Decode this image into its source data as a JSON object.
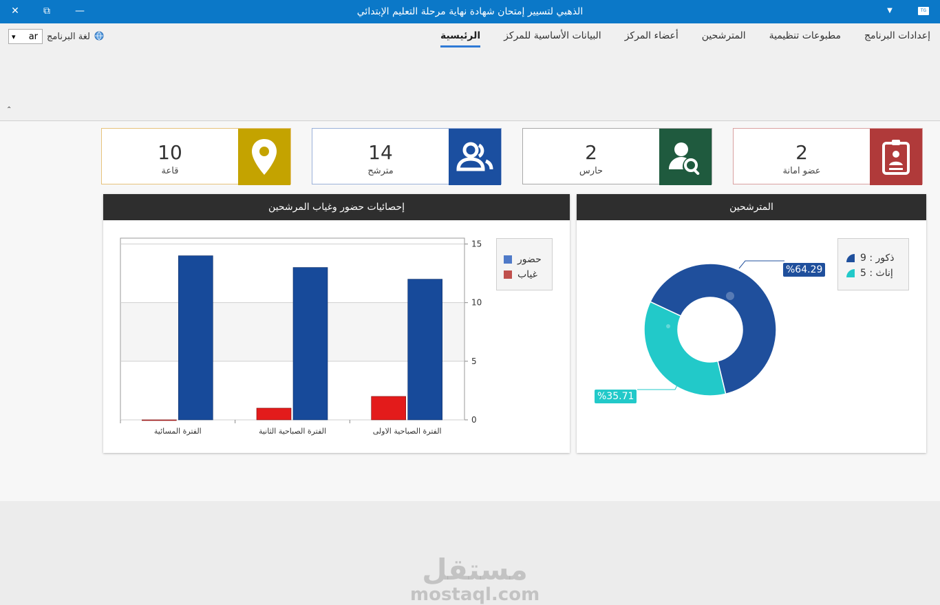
{
  "window": {
    "title": "الذهبي  لتسيير إمتحان شهادة نهاية مرحلة التعليم الإبتدائي",
    "close_glyph": "✕",
    "restore_glyph": "⧉",
    "minimize_glyph": "—",
    "dropdown_glyph": "▼",
    "app_icon_text": "TG"
  },
  "ribbon": {
    "tabs": [
      {
        "label": "الرئيسية",
        "active": true
      },
      {
        "label": "البيانات الأساسية للمركز"
      },
      {
        "label": "أعضاء المركز"
      },
      {
        "label": "المترشحين"
      },
      {
        "label": "مطبوعات تنظيمية"
      },
      {
        "label": "إعدادات البرنامج"
      }
    ],
    "language_label": "لغة البرنامج",
    "language_value": "ar",
    "language_arrow": "▾",
    "collapse_glyph": "⌃"
  },
  "cards": [
    {
      "value": "2",
      "label": "عضو امانة",
      "color": "#b03a3a",
      "icon": "id-badge-icon"
    },
    {
      "value": "2",
      "label": "حارس",
      "color": "#1f5a3e",
      "icon": "user-search-icon"
    },
    {
      "value": "14",
      "label": "مترشح",
      "color": "#1b4fa0",
      "icon": "users-icon"
    },
    {
      "value": "10",
      "label": "قاعة",
      "color": "#c4a300",
      "icon": "map-pin-icon"
    }
  ],
  "attendance_panel": {
    "title": "إحصائيات حضور وغياب المرشحين",
    "legend": [
      {
        "label": "حضور",
        "color": "#4f7ac8"
      },
      {
        "label": "غياب",
        "color": "#c0504d"
      }
    ]
  },
  "candidates_panel": {
    "title": "المترشحين",
    "legend": [
      {
        "label": "ذكور : 9",
        "color": "#1f4f9c"
      },
      {
        "label": "إناث : 5",
        "color": "#22c9c9"
      }
    ],
    "callouts": {
      "male": "%64.29",
      "female": "%35.71"
    }
  },
  "watermark": {
    "line1": "مستقل",
    "line2": "mostaql.com"
  },
  "chart_data": [
    {
      "type": "bar",
      "title": "إحصائيات حضور وغياب المرشحين",
      "categories": [
        "الفترة الصباحية الاولى",
        "الفترة الصباحية الثانية",
        "الفترة المسائية"
      ],
      "series": [
        {
          "name": "حضور",
          "values": [
            12,
            13,
            14
          ],
          "color": "#174a9a"
        },
        {
          "name": "غياب",
          "values": [
            2,
            1,
            0
          ],
          "color": "#e31b1b"
        }
      ],
      "ylim": [
        0,
        15.5
      ],
      "yticks": [
        0,
        5,
        10,
        15
      ],
      "y_axis_side": "right",
      "grid": true,
      "legend_position": "right"
    },
    {
      "type": "pie",
      "title": "المترشحين",
      "donut": true,
      "labels": [
        "ذكور",
        "إناث"
      ],
      "values": [
        9,
        5
      ],
      "percent_labels": [
        "%64.29",
        "%35.71"
      ],
      "colors": [
        "#1f4f9c",
        "#22c9c9"
      ],
      "legend_position": "top-right"
    }
  ]
}
